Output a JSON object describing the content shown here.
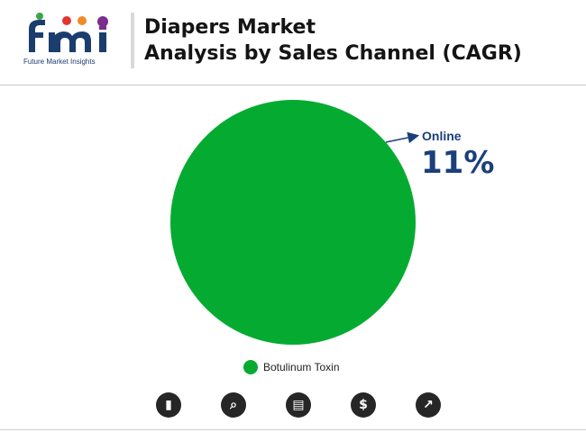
{
  "brand": {
    "caption": "Future Market Insights",
    "colors": {
      "navy": "#1b3d6e",
      "orange": "#f08a24",
      "red": "#e3342f",
      "purple": "#7a2d8c",
      "green": "#3aa64b"
    }
  },
  "header": {
    "title_line1": "Diapers Market",
    "title_line2": "Analysis by Sales Channel (CAGR)"
  },
  "chart_data": {
    "type": "pie",
    "slices": [
      {
        "name": "Botulinum Toxin",
        "value": 100,
        "color": "#05ab30"
      }
    ],
    "annotation": {
      "label": "Online",
      "value": "11%",
      "color": "#1a3f7a"
    },
    "legend": {
      "placement": "bottom",
      "entries": [
        "Botulinum Toxin"
      ]
    }
  },
  "footer_icons": [
    {
      "name": "bar-growth-icon",
      "glyph": "▮"
    },
    {
      "name": "magnify-chart-icon",
      "glyph": "⌕"
    },
    {
      "name": "report-icon",
      "glyph": "▤"
    },
    {
      "name": "dollar-icon",
      "glyph": "$"
    },
    {
      "name": "line-chart-icon",
      "glyph": "↗"
    }
  ]
}
